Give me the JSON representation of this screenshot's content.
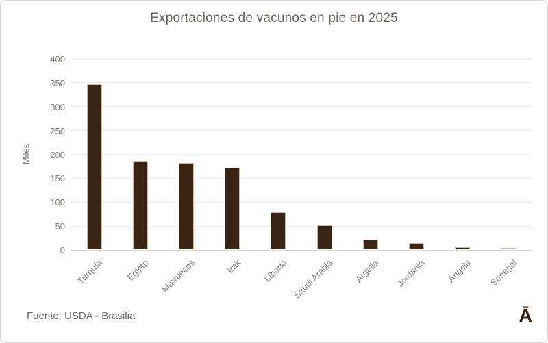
{
  "chart_data": {
    "type": "bar",
    "title": "Exportaciones de vacunos en pie en 2025",
    "ylabel": "Miles",
    "xlabel": "",
    "categories": [
      "Turquía",
      "Egipto",
      "Marruecos",
      "Irak",
      "Líbano",
      "Saudi Arabia",
      "Argelia",
      "Jordania",
      "Angola",
      "Senegal"
    ],
    "values": [
      345,
      185,
      180,
      170,
      77,
      50,
      20,
      13,
      4,
      2
    ],
    "ylim": [
      0,
      400
    ],
    "yticks": [
      0,
      50,
      100,
      150,
      200,
      250,
      300,
      350,
      400
    ],
    "grid": "horizontal",
    "legend": "none",
    "bar_color": "#3c2414"
  },
  "footer": {
    "source": "Fuente: USDA - Brasilia",
    "logo": "Ā"
  }
}
